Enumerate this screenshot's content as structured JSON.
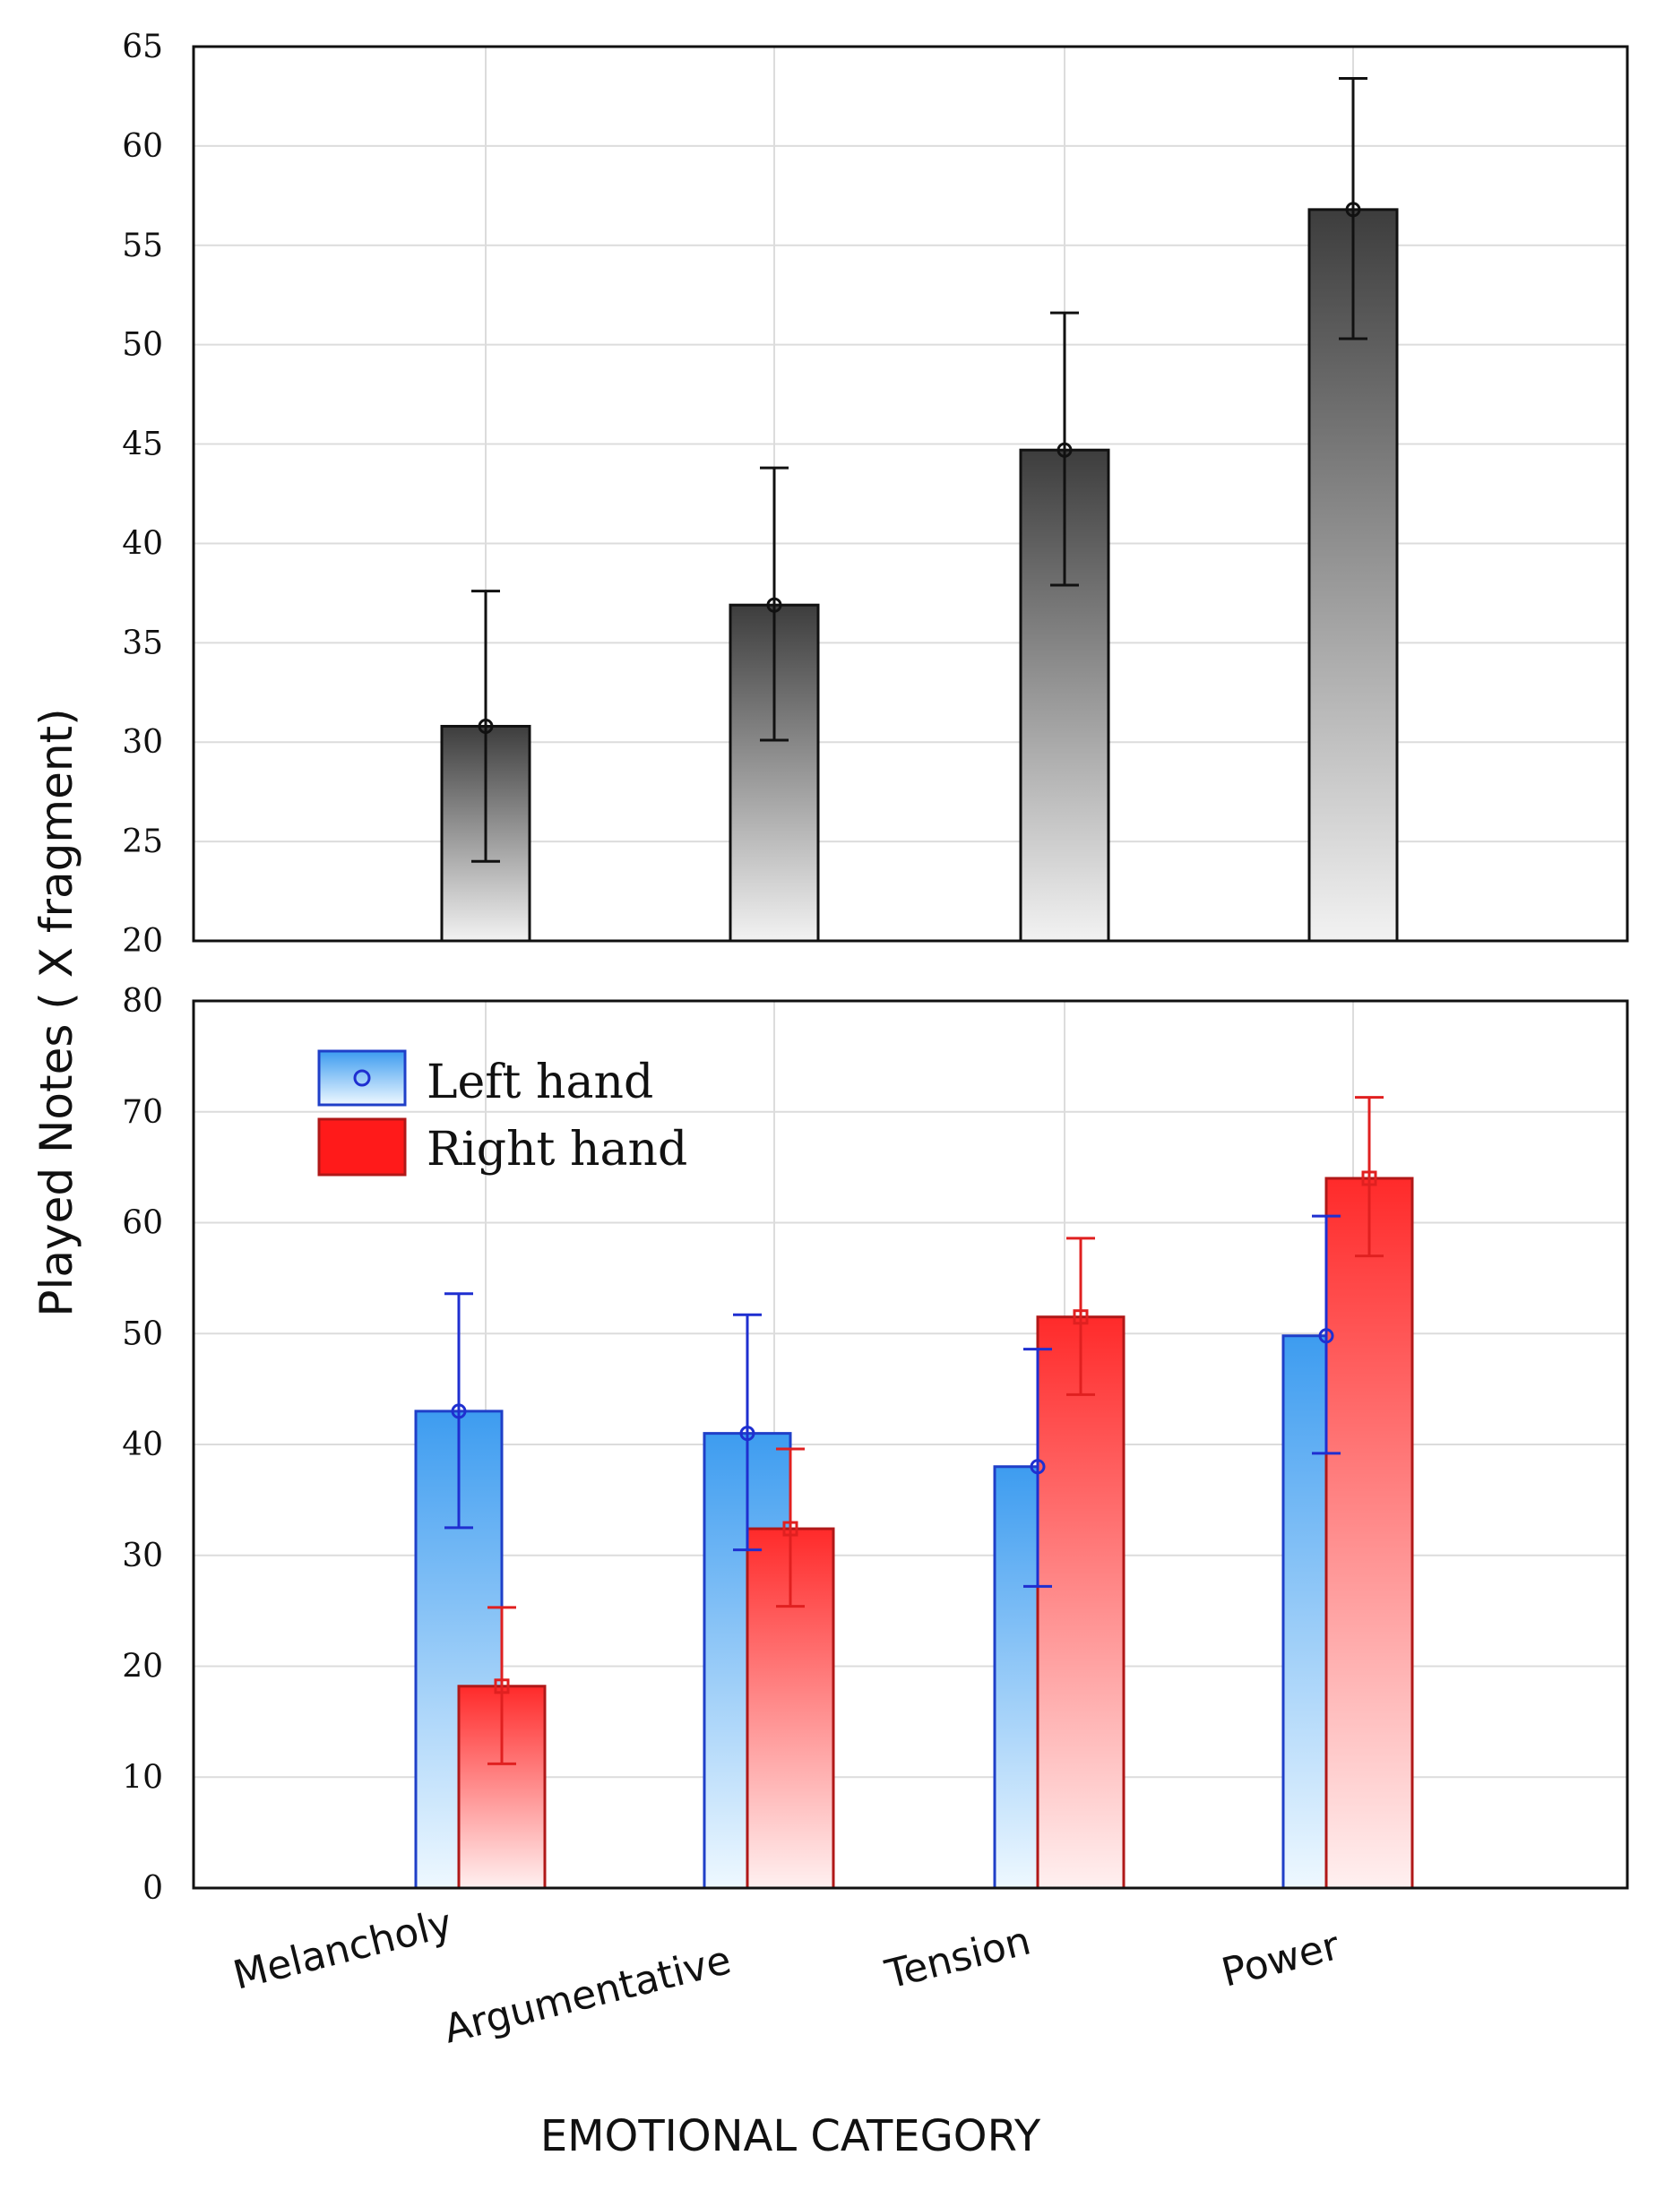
{
  "shared": {
    "ylabel": "Played Notes ( X fragment)",
    "xlabel": "EMOTIONAL CATEGORY"
  },
  "chart_data": [
    {
      "type": "bar",
      "title": "",
      "categories": [
        "Melancholy",
        "Argumentative",
        "Tension",
        "Power"
      ],
      "series": [
        {
          "name": "Played notes",
          "values": [
            30.8,
            36.9,
            44.7,
            56.8
          ],
          "err_low": [
            24.0,
            30.1,
            37.9,
            50.3
          ],
          "err_high": [
            37.6,
            43.8,
            51.6,
            63.4
          ]
        }
      ],
      "ylim": [
        20,
        65
      ],
      "yticks": [
        20,
        25,
        30,
        35,
        40,
        45,
        50,
        55,
        60,
        65
      ],
      "ytick_labels": [
        "20",
        "25",
        "30",
        "35",
        "40",
        "45",
        "50",
        "55",
        "60",
        "65"
      ],
      "grid": true,
      "colors": {
        "top": "#3d3d3d",
        "bottom": "#f2f2f2",
        "stroke": "#111111"
      }
    },
    {
      "type": "bar",
      "title": "",
      "categories": [
        "Melancholy",
        "Argumentative",
        "Tension",
        "Power"
      ],
      "series": [
        {
          "name": "Left hand",
          "values": [
            43.0,
            41.0,
            38.0,
            49.8
          ],
          "err_low": [
            32.5,
            30.5,
            27.2,
            39.2
          ],
          "err_high": [
            53.6,
            51.7,
            48.6,
            60.6
          ]
        },
        {
          "name": "Right hand",
          "values": [
            18.2,
            32.4,
            51.5,
            64.0
          ],
          "err_low": [
            11.2,
            25.4,
            44.5,
            57.0
          ],
          "err_high": [
            25.3,
            39.6,
            58.6,
            71.3
          ]
        }
      ],
      "ylim": [
        0,
        80
      ],
      "yticks": [
        0,
        10,
        20,
        30,
        40,
        50,
        60,
        70,
        80
      ],
      "ytick_labels": [
        "0",
        "10",
        "20",
        "30",
        "40",
        "50",
        "60",
        "70",
        "80"
      ],
      "grid": true,
      "legend": {
        "position": "top-left",
        "entries": [
          "Left hand",
          "Right hand"
        ]
      },
      "colors": {
        "left_top": "#3d9cf0",
        "left_bottom": "#eef8ff",
        "left_stroke": "#1f3fc8",
        "right_top": "#ff2a2a",
        "right_bottom": "#fff0f0",
        "right_stroke": "#b01818",
        "left_err": "#1f2fd0",
        "right_err": "#e02020"
      }
    }
  ]
}
